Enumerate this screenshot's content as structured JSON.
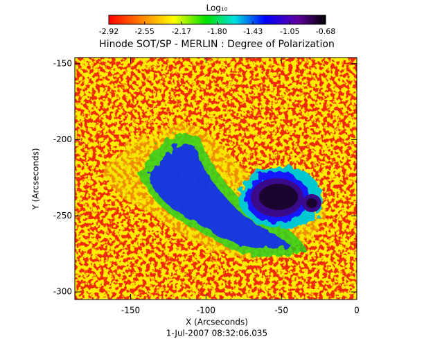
{
  "chart_data": {
    "type": "image",
    "title": "Hinode SOT/SP - MERLIN : Degree of Polarization",
    "colorbar_title": "Log₁₀",
    "clim": [
      -2.92,
      -0.68
    ],
    "cticks": [
      -2.92,
      -2.55,
      -2.17,
      {
        "value": -1.8,
        "label": "-1.80"
      },
      -1.43,
      -1.05,
      -0.68
    ],
    "xlabel": "X (Arcseconds)",
    "ylabel": "Y (Arcseconds)",
    "xlim": [
      -187,
      0
    ],
    "xticks": [
      -150,
      -100,
      -50,
      0
    ],
    "ylim": [
      -305,
      -146
    ],
    "yticks": [
      -150,
      -200,
      -250,
      -300
    ],
    "date": "1-Jul-2007 08:32:06.035"
  }
}
